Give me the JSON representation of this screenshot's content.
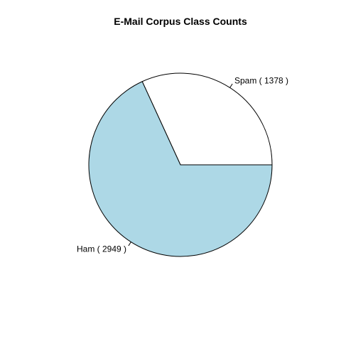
{
  "chart_data": {
    "type": "pie",
    "title": "E-Mail Corpus Class Counts",
    "slices": [
      {
        "label": "Spam",
        "value": 1378,
        "display": "Spam ( 1378 )",
        "color": "#ffffff"
      },
      {
        "label": "Ham",
        "value": 2949,
        "display": "Ham ( 2949 )",
        "color": "#add8e6"
      }
    ],
    "start_angle_deg": 0,
    "direction": "counterclockwise",
    "border_color": "#000000"
  }
}
